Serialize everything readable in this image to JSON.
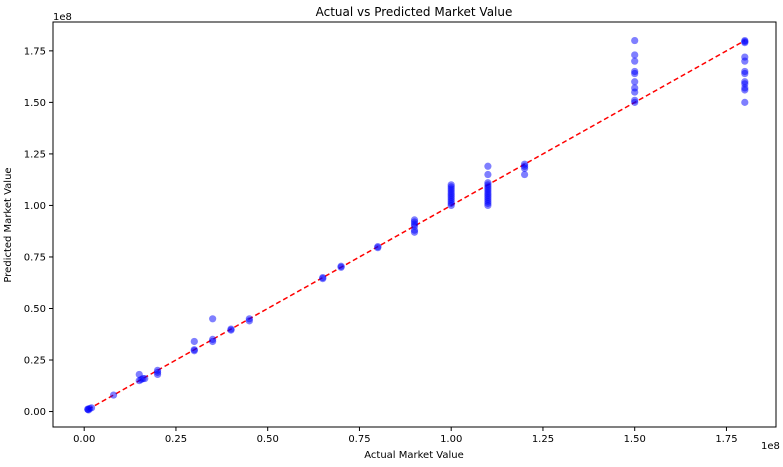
{
  "chart_data": {
    "type": "scatter",
    "title": "Actual vs Predicted Market Value",
    "xlabel": "Actual Market Value",
    "ylabel": "Predicted Market Value",
    "x_offset_label": "1e8",
    "y_offset_label": "1e8",
    "xlim": [
      -0.085,
      1.885
    ],
    "ylim": [
      -0.075,
      1.89
    ],
    "xticks": [
      0.0,
      0.25,
      0.5,
      0.75,
      1.0,
      1.25,
      1.5,
      1.75
    ],
    "xtick_labels": [
      "0.00",
      "0.25",
      "0.50",
      "0.75",
      "1.00",
      "1.25",
      "1.50",
      "1.75"
    ],
    "yticks": [
      0.0,
      0.25,
      0.5,
      0.75,
      1.0,
      1.25,
      1.5,
      1.75
    ],
    "ytick_labels": [
      "0.00",
      "0.25",
      "0.50",
      "0.75",
      "1.00",
      "1.25",
      "1.50",
      "1.75"
    ],
    "grid": false,
    "point_color": "#0000ff",
    "point_alpha": 0.5,
    "ideal_line": {
      "from": [
        0.01,
        0.01
      ],
      "to": [
        1.8,
        1.8
      ],
      "color": "#ff0000",
      "style": "dashed"
    },
    "series": [
      {
        "points": [
          [
            0.01,
            0.01
          ],
          [
            0.01,
            0.012
          ],
          [
            0.015,
            0.015
          ],
          [
            0.012,
            0.008
          ],
          [
            0.02,
            0.018
          ],
          [
            0.08,
            0.08
          ],
          [
            0.15,
            0.15
          ],
          [
            0.15,
            0.18
          ],
          [
            0.155,
            0.155
          ],
          [
            0.16,
            0.16
          ],
          [
            0.165,
            0.16
          ],
          [
            0.2,
            0.18
          ],
          [
            0.2,
            0.19
          ],
          [
            0.2,
            0.2
          ],
          [
            0.3,
            0.3
          ],
          [
            0.3,
            0.34
          ],
          [
            0.3,
            0.295
          ],
          [
            0.35,
            0.35
          ],
          [
            0.35,
            0.34
          ],
          [
            0.35,
            0.45
          ],
          [
            0.4,
            0.4
          ],
          [
            0.4,
            0.395
          ],
          [
            0.45,
            0.45
          ],
          [
            0.45,
            0.44
          ],
          [
            0.65,
            0.65
          ],
          [
            0.65,
            0.645
          ],
          [
            0.7,
            0.7
          ],
          [
            0.7,
            0.705
          ],
          [
            0.8,
            0.8
          ],
          [
            0.8,
            0.795
          ],
          [
            0.9,
            0.87
          ],
          [
            0.9,
            0.88
          ],
          [
            0.9,
            0.9
          ],
          [
            0.9,
            0.91
          ],
          [
            0.9,
            0.92
          ],
          [
            0.9,
            0.93
          ],
          [
            1.0,
            1.0
          ],
          [
            1.0,
            1.01
          ],
          [
            1.0,
            1.02
          ],
          [
            1.0,
            1.03
          ],
          [
            1.0,
            1.04
          ],
          [
            1.0,
            1.05
          ],
          [
            1.0,
            1.06
          ],
          [
            1.0,
            1.07
          ],
          [
            1.0,
            1.08
          ],
          [
            1.0,
            1.09
          ],
          [
            1.0,
            1.1
          ],
          [
            1.1,
            1.0
          ],
          [
            1.1,
            1.01
          ],
          [
            1.1,
            1.02
          ],
          [
            1.1,
            1.03
          ],
          [
            1.1,
            1.04
          ],
          [
            1.1,
            1.05
          ],
          [
            1.1,
            1.06
          ],
          [
            1.1,
            1.07
          ],
          [
            1.1,
            1.08
          ],
          [
            1.1,
            1.09
          ],
          [
            1.1,
            1.1
          ],
          [
            1.1,
            1.11
          ],
          [
            1.1,
            1.15
          ],
          [
            1.1,
            1.19
          ],
          [
            1.2,
            1.15
          ],
          [
            1.2,
            1.18
          ],
          [
            1.2,
            1.19
          ],
          [
            1.2,
            1.2
          ],
          [
            1.5,
            1.5
          ],
          [
            1.5,
            1.51
          ],
          [
            1.5,
            1.55
          ],
          [
            1.5,
            1.57
          ],
          [
            1.5,
            1.6
          ],
          [
            1.5,
            1.64
          ],
          [
            1.5,
            1.65
          ],
          [
            1.5,
            1.7
          ],
          [
            1.5,
            1.73
          ],
          [
            1.5,
            1.8
          ],
          [
            1.8,
            1.5
          ],
          [
            1.8,
            1.56
          ],
          [
            1.8,
            1.57
          ],
          [
            1.8,
            1.59
          ],
          [
            1.8,
            1.6
          ],
          [
            1.8,
            1.64
          ],
          [
            1.8,
            1.65
          ],
          [
            1.8,
            1.7
          ],
          [
            1.8,
            1.72
          ],
          [
            1.8,
            1.79
          ],
          [
            1.8,
            1.8
          ],
          [
            1.8,
            1.795
          ]
        ]
      }
    ]
  }
}
